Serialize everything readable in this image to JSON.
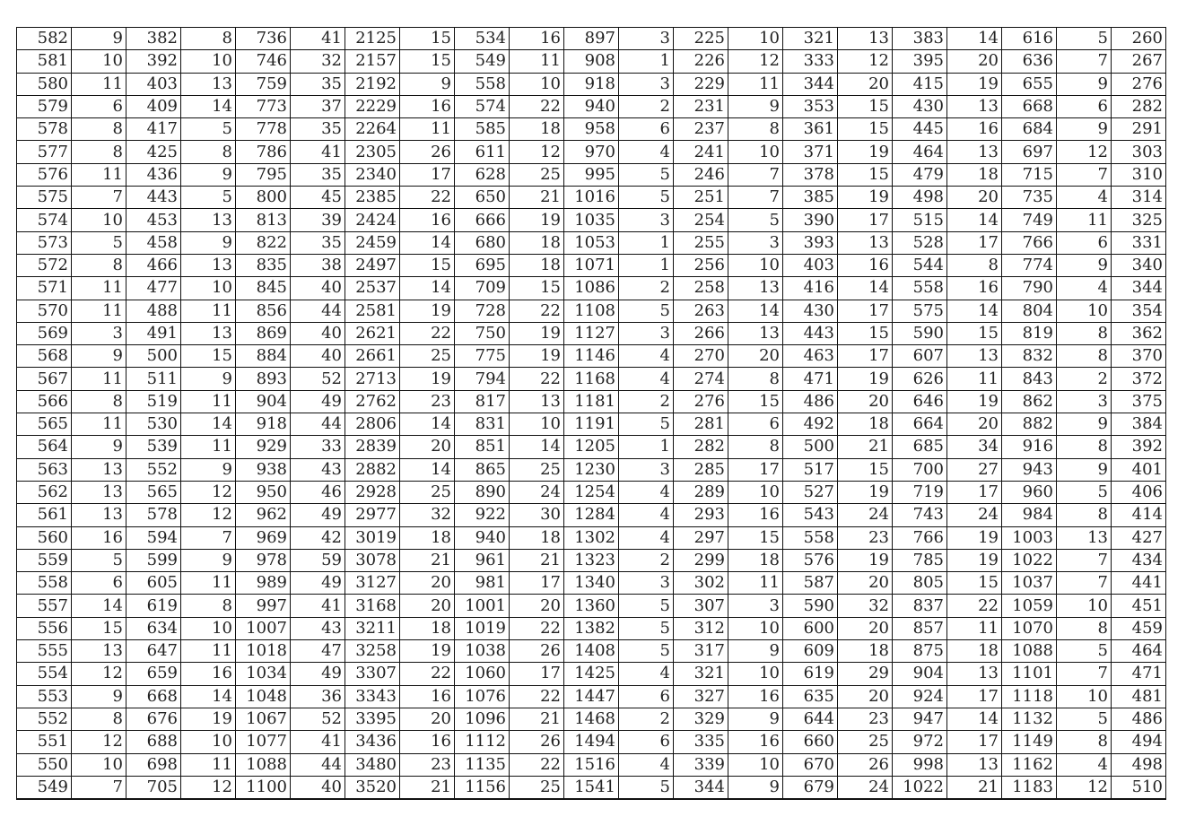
{
  "table": {
    "rows": [
      [
        582,
        9,
        382,
        8,
        736,
        41,
        2125,
        15,
        534,
        16,
        897,
        3,
        225,
        10,
        321,
        13,
        383,
        14,
        616,
        5,
        260
      ],
      [
        581,
        10,
        392,
        10,
        746,
        32,
        2157,
        15,
        549,
        11,
        908,
        1,
        226,
        12,
        333,
        12,
        395,
        20,
        636,
        7,
        267
      ],
      [
        580,
        11,
        403,
        13,
        759,
        35,
        2192,
        9,
        558,
        10,
        918,
        3,
        229,
        11,
        344,
        20,
        415,
        19,
        655,
        9,
        276
      ],
      [
        579,
        6,
        409,
        14,
        773,
        37,
        2229,
        16,
        574,
        22,
        940,
        2,
        231,
        9,
        353,
        15,
        430,
        13,
        668,
        6,
        282
      ],
      [
        578,
        8,
        417,
        5,
        778,
        35,
        2264,
        11,
        585,
        18,
        958,
        6,
        237,
        8,
        361,
        15,
        445,
        16,
        684,
        9,
        291
      ],
      [
        577,
        8,
        425,
        8,
        786,
        41,
        2305,
        26,
        611,
        12,
        970,
        4,
        241,
        10,
        371,
        19,
        464,
        13,
        697,
        12,
        303
      ],
      [
        576,
        11,
        436,
        9,
        795,
        35,
        2340,
        17,
        628,
        25,
        995,
        5,
        246,
        7,
        378,
        15,
        479,
        18,
        715,
        7,
        310
      ],
      [
        575,
        7,
        443,
        5,
        800,
        45,
        2385,
        22,
        650,
        21,
        1016,
        5,
        251,
        7,
        385,
        19,
        498,
        20,
        735,
        4,
        314
      ],
      [
        574,
        10,
        453,
        13,
        813,
        39,
        2424,
        16,
        666,
        19,
        1035,
        3,
        254,
        5,
        390,
        17,
        515,
        14,
        749,
        11,
        325
      ],
      [
        573,
        5,
        458,
        9,
        822,
        35,
        2459,
        14,
        680,
        18,
        1053,
        1,
        255,
        3,
        393,
        13,
        528,
        17,
        766,
        6,
        331
      ],
      [
        572,
        8,
        466,
        13,
        835,
        38,
        2497,
        15,
        695,
        18,
        1071,
        1,
        256,
        10,
        403,
        16,
        544,
        8,
        774,
        9,
        340
      ],
      [
        571,
        11,
        477,
        10,
        845,
        40,
        2537,
        14,
        709,
        15,
        1086,
        2,
        258,
        13,
        416,
        14,
        558,
        16,
        790,
        4,
        344
      ],
      [
        570,
        11,
        488,
        11,
        856,
        44,
        2581,
        19,
        728,
        22,
        1108,
        5,
        263,
        14,
        430,
        17,
        575,
        14,
        804,
        10,
        354
      ],
      [
        569,
        3,
        491,
        13,
        869,
        40,
        2621,
        22,
        750,
        19,
        1127,
        3,
        266,
        13,
        443,
        15,
        590,
        15,
        819,
        8,
        362
      ],
      [
        568,
        9,
        500,
        15,
        884,
        40,
        2661,
        25,
        775,
        19,
        1146,
        4,
        270,
        20,
        463,
        17,
        607,
        13,
        832,
        8,
        370
      ],
      [
        567,
        11,
        511,
        9,
        893,
        52,
        2713,
        19,
        794,
        22,
        1168,
        4,
        274,
        8,
        471,
        19,
        626,
        11,
        843,
        2,
        372
      ],
      [
        566,
        8,
        519,
        11,
        904,
        49,
        2762,
        23,
        817,
        13,
        1181,
        2,
        276,
        15,
        486,
        20,
        646,
        19,
        862,
        3,
        375
      ],
      [
        565,
        11,
        530,
        14,
        918,
        44,
        2806,
        14,
        831,
        10,
        1191,
        5,
        281,
        6,
        492,
        18,
        664,
        20,
        882,
        9,
        384
      ],
      [
        564,
        9,
        539,
        11,
        929,
        33,
        2839,
        20,
        851,
        14,
        1205,
        1,
        282,
        8,
        500,
        21,
        685,
        34,
        916,
        8,
        392
      ],
      [
        563,
        13,
        552,
        9,
        938,
        43,
        2882,
        14,
        865,
        25,
        1230,
        3,
        285,
        17,
        517,
        15,
        700,
        27,
        943,
        9,
        401
      ],
      [
        562,
        13,
        565,
        12,
        950,
        46,
        2928,
        25,
        890,
        24,
        1254,
        4,
        289,
        10,
        527,
        19,
        719,
        17,
        960,
        5,
        406
      ],
      [
        561,
        13,
        578,
        12,
        962,
        49,
        2977,
        32,
        922,
        30,
        1284,
        4,
        293,
        16,
        543,
        24,
        743,
        24,
        984,
        8,
        414
      ],
      [
        560,
        16,
        594,
        7,
        969,
        42,
        3019,
        18,
        940,
        18,
        1302,
        4,
        297,
        15,
        558,
        23,
        766,
        19,
        1003,
        13,
        427
      ],
      [
        559,
        5,
        599,
        9,
        978,
        59,
        3078,
        21,
        961,
        21,
        1323,
        2,
        299,
        18,
        576,
        19,
        785,
        19,
        1022,
        7,
        434
      ],
      [
        558,
        6,
        605,
        11,
        989,
        49,
        3127,
        20,
        981,
        17,
        1340,
        3,
        302,
        11,
        587,
        20,
        805,
        15,
        1037,
        7,
        441
      ],
      [
        557,
        14,
        619,
        8,
        997,
        41,
        3168,
        20,
        1001,
        20,
        1360,
        5,
        307,
        3,
        590,
        32,
        837,
        22,
        1059,
        10,
        451
      ],
      [
        556,
        15,
        634,
        10,
        1007,
        43,
        3211,
        18,
        1019,
        22,
        1382,
        5,
        312,
        10,
        600,
        20,
        857,
        11,
        1070,
        8,
        459
      ],
      [
        555,
        13,
        647,
        11,
        1018,
        47,
        3258,
        19,
        1038,
        26,
        1408,
        5,
        317,
        9,
        609,
        18,
        875,
        18,
        1088,
        5,
        464
      ],
      [
        554,
        12,
        659,
        16,
        1034,
        49,
        3307,
        22,
        1060,
        17,
        1425,
        4,
        321,
        10,
        619,
        29,
        904,
        13,
        1101,
        7,
        471
      ],
      [
        553,
        9,
        668,
        14,
        1048,
        36,
        3343,
        16,
        1076,
        22,
        1447,
        6,
        327,
        16,
        635,
        20,
        924,
        17,
        1118,
        10,
        481
      ],
      [
        552,
        8,
        676,
        19,
        1067,
        52,
        3395,
        20,
        1096,
        21,
        1468,
        2,
        329,
        9,
        644,
        23,
        947,
        14,
        1132,
        5,
        486
      ],
      [
        551,
        12,
        688,
        10,
        1077,
        41,
        3436,
        16,
        1112,
        26,
        1494,
        6,
        335,
        16,
        660,
        25,
        972,
        17,
        1149,
        8,
        494
      ],
      [
        550,
        10,
        698,
        11,
        1088,
        44,
        3480,
        23,
        1135,
        22,
        1516,
        4,
        339,
        10,
        670,
        26,
        998,
        13,
        1162,
        4,
        498
      ],
      [
        549,
        7,
        705,
        12,
        1100,
        40,
        3520,
        21,
        1156,
        25,
        1541,
        5,
        344,
        9,
        679,
        24,
        1022,
        21,
        1183,
        12,
        510
      ]
    ]
  }
}
